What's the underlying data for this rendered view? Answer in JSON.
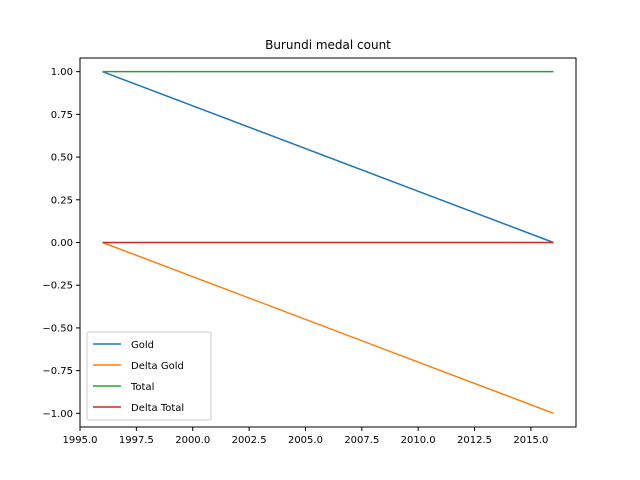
{
  "chart_data": {
    "type": "line",
    "title": "Burundi medal count",
    "xlabel": "",
    "ylabel": "",
    "x": [
      1996,
      2016
    ],
    "xlim": [
      1995,
      2017
    ],
    "ylim": [
      -1.08,
      1.08
    ],
    "xticks": [
      1995.0,
      1997.5,
      2000.0,
      2002.5,
      2005.0,
      2007.5,
      2010.0,
      2012.5,
      2015.0
    ],
    "xtick_labels": [
      "1995.0",
      "1997.5",
      "2000.0",
      "2002.5",
      "2005.0",
      "2007.5",
      "2010.0",
      "2012.5",
      "2015.0"
    ],
    "yticks": [
      1.0,
      0.75,
      0.5,
      0.25,
      0.0,
      -0.25,
      -0.5,
      -0.75,
      -1.0
    ],
    "ytick_labels": [
      "1.00",
      "0.75",
      "0.50",
      "0.25",
      "0.00",
      "−0.25",
      "−0.50",
      "−0.75",
      "−1.00"
    ],
    "grid": false,
    "legend_position": "lower-left",
    "series": [
      {
        "name": "Gold",
        "values": [
          1,
          0
        ],
        "color": "#1f77b4"
      },
      {
        "name": "Delta Gold",
        "values": [
          0,
          -1
        ],
        "color": "#ff7f0e"
      },
      {
        "name": "Total",
        "values": [
          1,
          1
        ],
        "color": "#2ca02c"
      },
      {
        "name": "Delta Total",
        "values": [
          0,
          0
        ],
        "color": "#d62728"
      }
    ]
  }
}
